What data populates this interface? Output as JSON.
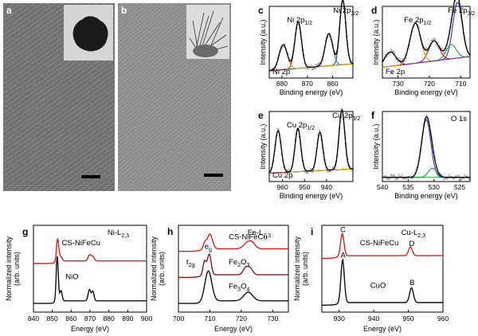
{
  "figure": {
    "panels": {
      "a": {
        "label": "a",
        "type": "micrograph"
      },
      "b": {
        "label": "b",
        "type": "micrograph"
      },
      "c": {
        "label": "c"
      },
      "d": {
        "label": "d"
      },
      "e": {
        "label": "e"
      },
      "f": {
        "label": "f"
      },
      "g": {
        "label": "g"
      },
      "h": {
        "label": "h"
      },
      "i": {
        "label": "i"
      }
    },
    "labels": {
      "xps_ylabel": "Intensity (a.u.)",
      "xps_xlabel": "Binding energy (eV)",
      "xas_ylabel_1": "Normalized intensity",
      "xas_ylabel_2": "(arb. units)",
      "xas_xlabel": "Energy (eV)"
    }
  },
  "chart_data": [
    {
      "panel": "c",
      "type": "line",
      "title": "",
      "xlabel": "Binding energy (eV)",
      "ylabel": "Intensity (a.u.)",
      "xlim": [
        885,
        852
      ],
      "reversed_x": true,
      "xticks": [
        "880",
        "870",
        "860"
      ],
      "xtick_values": [
        880,
        870,
        860
      ],
      "annotations": {
        "peak1": "Ni 2p",
        "peak1_sub": "3/2",
        "peak2": "Ni 2p",
        "peak2_sub": "1/2",
        "corner": "Ni 2p"
      },
      "peaks": [
        {
          "center": 856,
          "height": 0.9,
          "width": 1.2
        },
        {
          "center": 861.5,
          "height": 0.45,
          "width": 1.5
        },
        {
          "center": 873.6,
          "height": 0.65,
          "width": 1.3
        },
        {
          "center": 879.5,
          "height": 0.35,
          "width": 1.6
        }
      ],
      "baseline": [
        0.1,
        0.2
      ]
    },
    {
      "panel": "d",
      "type": "line",
      "title": "",
      "xlabel": "Binding energy (eV)",
      "ylabel": "Intensity (a.u.)",
      "xlim": [
        735,
        707
      ],
      "reversed_x": true,
      "xticks": [
        "730",
        "720",
        "710"
      ],
      "xtick_values": [
        730,
        720,
        710
      ],
      "annotations": {
        "peak1": "Fe 2p",
        "peak1_sub": "3/2",
        "peak2": "Fe 2p",
        "peak2_sub": "1/2",
        "corner": "Fe 2p"
      },
      "peaks": [
        {
          "center": 711,
          "height": 0.78,
          "width": 1.5
        },
        {
          "center": 713,
          "height": 0.2,
          "width": 1.6
        },
        {
          "center": 718.5,
          "height": 0.28,
          "width": 1.7
        },
        {
          "center": 724.5,
          "height": 0.56,
          "width": 1.7
        },
        {
          "center": 732.5,
          "height": 0.2,
          "width": 1.8
        }
      ],
      "baseline": [
        0.15,
        0.3
      ]
    },
    {
      "panel": "e",
      "type": "line",
      "title": "",
      "xlabel": "Binding energy (eV)",
      "ylabel": "Intensity (a.u.)",
      "xlim": [
        966,
        928
      ],
      "reversed_x": true,
      "xticks": [
        "960",
        "950",
        "940"
      ],
      "xtick_values": [
        960,
        950,
        940
      ],
      "annotations": {
        "peak1": "Cu 2p",
        "peak1_sub": "3/2",
        "peak2": "Cu 2p",
        "peak2_sub": "1/2",
        "corner": "Cu 2p"
      },
      "peaks": [
        {
          "center": 933,
          "height": 0.85,
          "width": 1.3
        },
        {
          "center": 943,
          "height": 0.55,
          "width": 1.3
        },
        {
          "center": 953,
          "height": 0.62,
          "width": 1.3
        },
        {
          "center": 962,
          "height": 0.6,
          "width": 1.4
        }
      ],
      "baseline": [
        0.12,
        0.18
      ]
    },
    {
      "panel": "f",
      "type": "line",
      "title": "",
      "xlabel": "Binding energy (eV)",
      "ylabel": "Intensity (a.u.)",
      "xlim": [
        540,
        523
      ],
      "reversed_x": true,
      "xticks": [
        "540",
        "535",
        "530",
        "525"
      ],
      "xtick_values": [
        540,
        535,
        530,
        525
      ],
      "annotations": {
        "corner": "O 1s"
      },
      "peaks": [
        {
          "center": 531.5,
          "height": 0.82,
          "width": 0.9
        },
        {
          "center": 530.3,
          "height": 0.13,
          "width": 0.8
        }
      ],
      "baseline": [
        0.06,
        0.06
      ]
    },
    {
      "panel": "g",
      "type": "line",
      "title": "",
      "xlabel": "Energy (eV)",
      "xlim": [
        840,
        900
      ],
      "xticks": [
        "840",
        "850",
        "860",
        "870",
        "880",
        "890",
        "900"
      ],
      "xtick_values": [
        840,
        850,
        860,
        870,
        880,
        890,
        900
      ],
      "edge_label": "Ni-L",
      "edge_sub": "2,3",
      "series": [
        {
          "name": "CS-NiFeCu",
          "color": "#e02020",
          "offset": 0.56,
          "peaks": [
            {
              "center": 852.8,
              "height": 0.26,
              "width": 0.6
            },
            {
              "center": 854.5,
              "height": 0.05,
              "width": 0.7
            },
            {
              "center": 869.8,
              "height": 0.07,
              "width": 0.8
            },
            {
              "center": 871.5,
              "height": 0.05,
              "width": 0.7
            }
          ]
        },
        {
          "name": "NiO",
          "color": "#111111",
          "offset": 0.1,
          "peaks": [
            {
              "center": 852.6,
              "height": 0.52,
              "width": 0.55
            },
            {
              "center": 854.6,
              "height": 0.12,
              "width": 0.6
            },
            {
              "center": 869.7,
              "height": 0.13,
              "width": 0.7
            },
            {
              "center": 871.5,
              "height": 0.11,
              "width": 0.6
            }
          ]
        }
      ]
    },
    {
      "panel": "h",
      "type": "line",
      "title": "",
      "xlabel": "Energy (eV)",
      "xlim": [
        700,
        735
      ],
      "xticks": [
        "700",
        "710",
        "720",
        "730"
      ],
      "xtick_values": [
        700,
        710,
        720,
        730
      ],
      "edge_label": "Fe-L",
      "edge_sub": "2,3",
      "sub_labels": {
        "t2g": "t",
        "t2g_sub": "2g",
        "eg": "e",
        "eg_sub": "g"
      },
      "series": [
        {
          "name": "CS-NiFeCu",
          "color": "#e02020",
          "offset": 0.7,
          "peaks": [
            {
              "center": 708.4,
              "height": 0.07,
              "width": 0.5
            },
            {
              "center": 710,
              "height": 0.17,
              "width": 0.8
            },
            {
              "center": 722,
              "height": 0.07,
              "width": 1.2
            },
            {
              "center": 723.6,
              "height": 0.05,
              "width": 1.0
            }
          ]
        },
        {
          "name": "Fe2O3",
          "label_main": "Fe",
          "label_sub1": "2",
          "label_mid": "O",
          "label_sub2": "3",
          "color": "#8b1a1a",
          "offset": 0.4,
          "peaks": [
            {
              "center": 708.3,
              "height": 0.16,
              "width": 0.5
            },
            {
              "center": 709.8,
              "height": 0.24,
              "width": 0.6
            },
            {
              "center": 721.4,
              "height": 0.08,
              "width": 0.8
            },
            {
              "center": 722.9,
              "height": 0.07,
              "width": 0.8
            }
          ]
        },
        {
          "name": "Fe3O4",
          "label_main": "Fe",
          "label_sub1": "3",
          "label_mid": "O",
          "label_sub2": "4",
          "color": "#111111",
          "offset": 0.1,
          "peaks": [
            {
              "center": 709.5,
              "height": 0.35,
              "width": 1.1
            },
            {
              "center": 722.2,
              "height": 0.1,
              "width": 1.4
            }
          ]
        }
      ]
    },
    {
      "panel": "i",
      "type": "line",
      "title": "",
      "xlabel": "Energy (eV)",
      "xlim": [
        925,
        960
      ],
      "xticks": [
        "930",
        "940",
        "950",
        "960"
      ],
      "xtick_values": [
        930,
        940,
        950,
        960
      ],
      "edge_label": "Cu-L",
      "edge_sub": "2,3",
      "peak_labels": {
        "C": "C",
        "D": "D",
        "A": "A",
        "B": "B"
      },
      "series": [
        {
          "name": "CS-NiFeCu",
          "color": "#e02020",
          "offset": 0.62,
          "peaks": [
            {
              "center": 930.9,
              "height": 0.26,
              "width": 0.5
            },
            {
              "center": 950.6,
              "height": 0.1,
              "width": 0.55
            }
          ]
        },
        {
          "name": "CuO",
          "color": "#111111",
          "offset": 0.08,
          "peaks": [
            {
              "center": 931,
              "height": 0.5,
              "width": 0.5
            },
            {
              "center": 950.9,
              "height": 0.17,
              "width": 0.55
            }
          ]
        }
      ]
    }
  ]
}
